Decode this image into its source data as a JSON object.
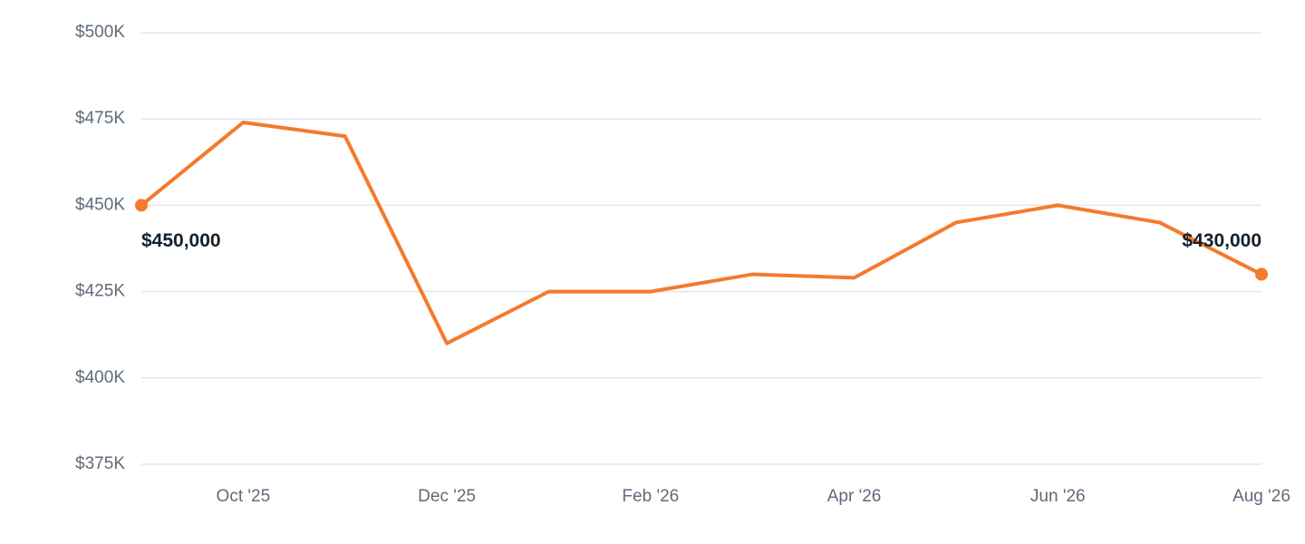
{
  "chart_data": {
    "type": "line",
    "categories": [
      null,
      "Oct '25",
      null,
      "Dec '25",
      null,
      "Feb '26",
      null,
      "Apr '26",
      null,
      "Jun '26",
      null,
      "Aug '26"
    ],
    "values": [
      450000,
      474000,
      470000,
      410000,
      425000,
      425000,
      430000,
      429000,
      445000,
      450000,
      445000,
      430000
    ],
    "value_labels": [
      "$450,000",
      null,
      null,
      null,
      null,
      null,
      null,
      null,
      null,
      null,
      null,
      "$430,000"
    ],
    "color": "#f47a2e",
    "ylim": [
      375000,
      500000
    ],
    "yticks": [
      {
        "value": 375000,
        "label": "$375K"
      },
      {
        "value": 400000,
        "label": "$400K"
      },
      {
        "value": 425000,
        "label": "$425K"
      },
      {
        "value": 450000,
        "label": "$450K"
      },
      {
        "value": 475000,
        "label": "$475K"
      },
      {
        "value": 500000,
        "label": "$500K"
      }
    ],
    "grid": true
  }
}
